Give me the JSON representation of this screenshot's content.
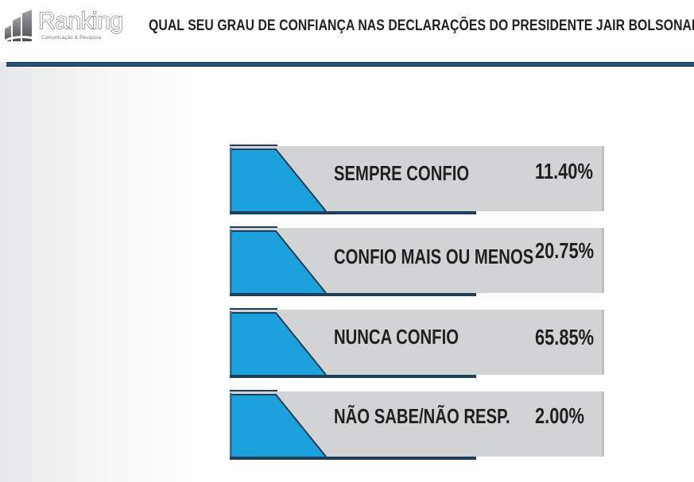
{
  "header": {
    "logo_text": "Ranking",
    "logo_subtext": "Comunicação & Pesquisa",
    "title": "QUAL SEU GRAU DE CONFIANÇA NAS DECLARAÇÕES DO PRESIDENTE JAIR BOLSONARO?"
  },
  "colors": {
    "accent_blue": "#1ba1dc",
    "dark_navy": "#1d3f5c",
    "card_gray": "#d1d3d4",
    "text": "#231f20"
  },
  "chart_data": {
    "type": "table",
    "title": "QUAL SEU GRAU DE CONFIANÇA NAS DECLARAÇÕES DO PRESIDENTE JAIR BOLSONARO?",
    "categories": [
      "SEMPRE CONFIO",
      "CONFIO MAIS OU MENOS",
      "NUNCA CONFIO",
      "NÃO SABE/NÃO RESP."
    ],
    "values": [
      11.4,
      20.75,
      65.85,
      2.0
    ],
    "value_labels": [
      "11.40%",
      "20.75%",
      "65.85%",
      "2.00%"
    ],
    "unit": "%"
  }
}
